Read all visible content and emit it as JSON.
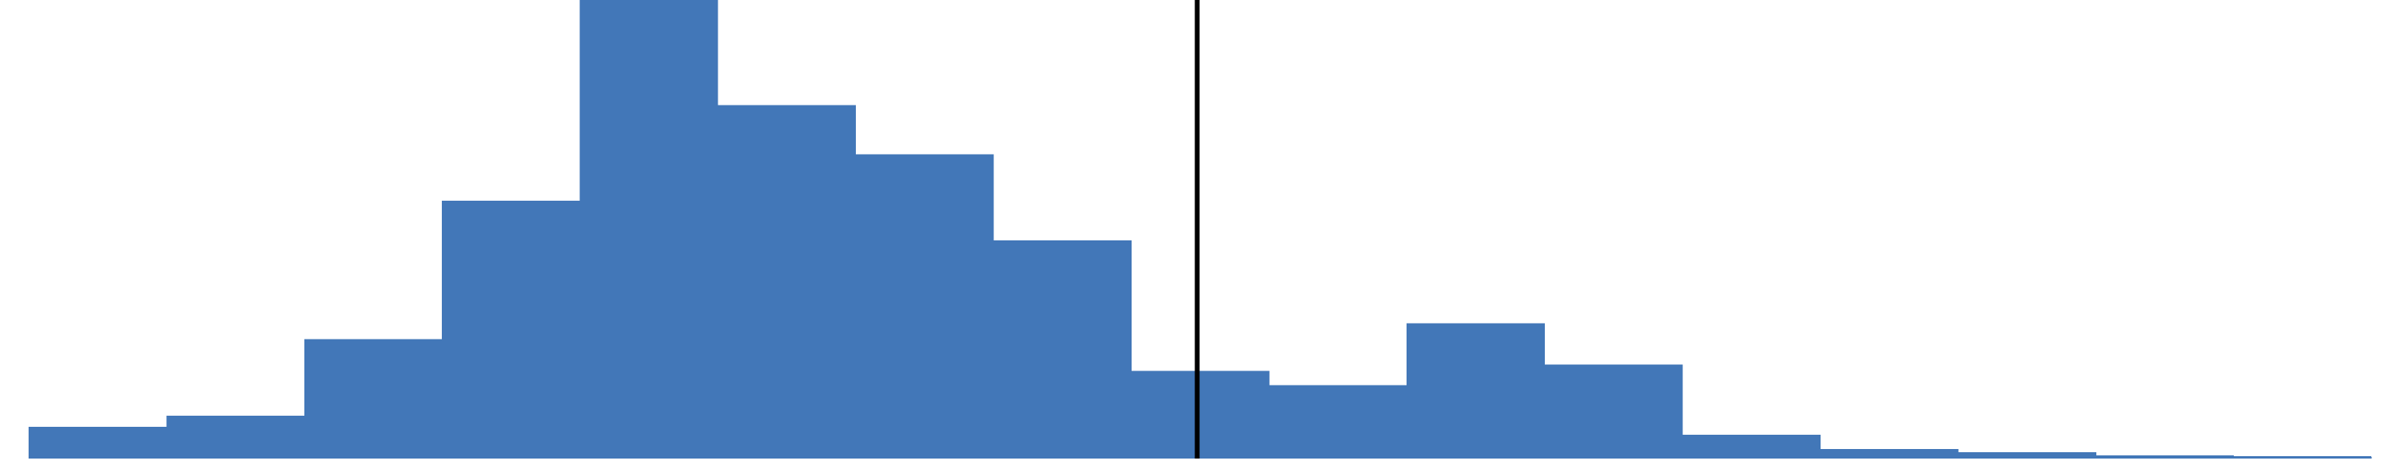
{
  "chart_data": {
    "type": "bar",
    "subtype": "histogram",
    "title": "",
    "xlabel": "",
    "ylabel": "",
    "axes_visible": false,
    "grid": false,
    "legend": "none",
    "bin_count": 17,
    "values": [
      20,
      27,
      75,
      162,
      288,
      222,
      191,
      137,
      55,
      46,
      85,
      59,
      15,
      6,
      4,
      2,
      1
    ],
    "ylim": [
      0,
      288
    ],
    "reference_line": {
      "bin_position": 8.48,
      "color": "#000000"
    },
    "bar_color": "#4277b8",
    "background_color": "#ffffff"
  }
}
